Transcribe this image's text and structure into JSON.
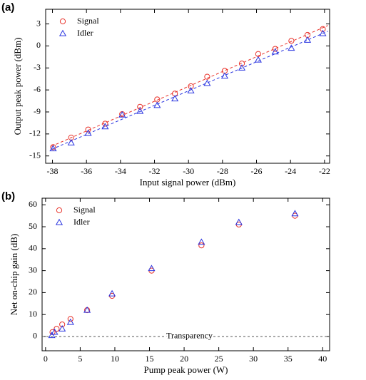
{
  "chart_data": [
    {
      "type": "scatter",
      "panel_label": "(a)",
      "xlabel": "Input signal power (dBm)",
      "ylabel": "Output peak power (dBm)",
      "xlim": [
        -38.4,
        -21.7
      ],
      "ylim": [
        -16,
        5
      ],
      "xticks": [
        -38,
        -36,
        -34,
        -32,
        -30,
        -28,
        -26,
        -24,
        -22
      ],
      "yticks": [
        -15,
        -12,
        -9,
        -6,
        -3,
        0,
        3
      ],
      "fit_lines": true,
      "legend": "upper left",
      "series": [
        {
          "name": "Signal",
          "color": "#e8322a",
          "marker": "circle",
          "x": [
            -37.96,
            -36.9,
            -35.9,
            -34.9,
            -33.9,
            -32.85,
            -31.84,
            -30.8,
            -29.86,
            -28.9,
            -27.87,
            -26.86,
            -25.9,
            -24.9,
            -23.95,
            -23.0,
            -22.1
          ],
          "values": [
            -13.8,
            -12.5,
            -11.4,
            -10.6,
            -9.3,
            -8.3,
            -7.3,
            -6.5,
            -5.5,
            -4.2,
            -3.4,
            -2.4,
            -1.1,
            -0.4,
            0.7,
            1.5,
            2.3
          ]
        },
        {
          "name": "Idler",
          "color": "#2a35e0",
          "marker": "triangle",
          "x": [
            -37.96,
            -36.9,
            -35.9,
            -34.9,
            -33.9,
            -32.85,
            -31.84,
            -30.8,
            -29.86,
            -28.9,
            -27.87,
            -26.86,
            -25.9,
            -24.9,
            -23.95,
            -23.0,
            -22.1
          ],
          "values": [
            -14.0,
            -13.2,
            -11.9,
            -11.0,
            -9.4,
            -8.9,
            -8.1,
            -7.2,
            -6.1,
            -5.1,
            -4.1,
            -3.0,
            -1.9,
            -0.8,
            -0.3,
            0.8,
            1.7
          ]
        }
      ]
    },
    {
      "type": "scatter",
      "panel_label": "(b)",
      "xlabel": "Pump peak power (W)",
      "ylabel": "Net on-chip gain (dB)",
      "xlim": [
        -0.5,
        41
      ],
      "ylim": [
        -6.5,
        63
      ],
      "xticks": [
        0,
        5,
        10,
        15,
        20,
        25,
        30,
        35,
        40
      ],
      "yticks": [
        0,
        10,
        20,
        30,
        40,
        50,
        60
      ],
      "fit_lines": false,
      "legend": "upper left",
      "reference_line": {
        "value": 0,
        "label": "Transparency"
      },
      "series": [
        {
          "name": "Signal",
          "color": "#e8322a",
          "marker": "circle",
          "x": [
            1.0,
            1.6,
            2.4,
            3.6,
            6.0,
            9.6,
            15.3,
            22.5,
            27.9,
            36.0
          ],
          "values": [
            2,
            3.5,
            5.5,
            8,
            12,
            18.5,
            30,
            41.5,
            51,
            55
          ]
        },
        {
          "name": "Idler",
          "color": "#2a35e0",
          "marker": "triangle",
          "x": [
            0.9,
            1.3,
            2.4,
            3.6,
            6.0,
            9.6,
            15.3,
            22.5,
            27.9,
            36.0
          ],
          "values": [
            0.5,
            2,
            3.5,
            6.5,
            12,
            19.5,
            31,
            43,
            52,
            56
          ]
        }
      ]
    }
  ]
}
